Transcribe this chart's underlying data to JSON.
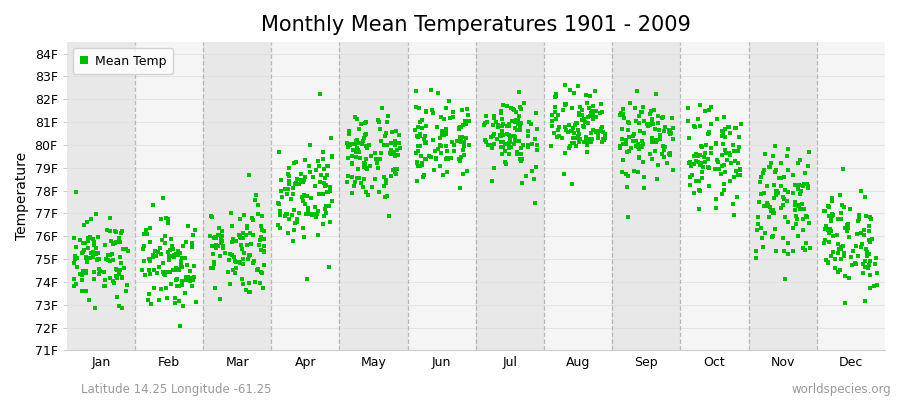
{
  "title": "Monthly Mean Temperatures 1901 - 2009",
  "ylabel": "Temperature",
  "ylim": [
    71,
    84.5
  ],
  "yticks": [
    71,
    72,
    73,
    74,
    75,
    76,
    77,
    78,
    79,
    80,
    81,
    82,
    83,
    84
  ],
  "ytick_labels": [
    "71F",
    "72F",
    "73F",
    "74F",
    "75F",
    "76F",
    "77F",
    "78F",
    "79F",
    "80F",
    "81F",
    "82F",
    "83F",
    "84F"
  ],
  "months": [
    "Jan",
    "Feb",
    "Mar",
    "Apr",
    "May",
    "Jun",
    "Jul",
    "Aug",
    "Sep",
    "Oct",
    "Nov",
    "Dec"
  ],
  "month_means": [
    75.0,
    74.8,
    75.5,
    78.0,
    79.5,
    80.2,
    80.5,
    80.8,
    80.2,
    79.5,
    77.5,
    75.8
  ],
  "month_stds": [
    0.9,
    1.0,
    1.0,
    1.1,
    1.0,
    0.9,
    0.9,
    0.8,
    0.9,
    1.0,
    1.1,
    1.1
  ],
  "n_years": 109,
  "dot_color": "#00bb00",
  "dot_size": 5,
  "bg_color": "#ffffff",
  "plot_bg_color": "#ffffff",
  "band_color_odd": "#e8e8e8",
  "band_color_even": "#f5f5f5",
  "dashed_line_color": "#aaaaaa",
  "legend_label": "Mean Temp",
  "footnote_left": "Latitude 14.25 Longitude -61.25",
  "footnote_right": "worldspecies.org",
  "footnote_color": "#999999",
  "title_fontsize": 15,
  "axis_fontsize": 10,
  "tick_fontsize": 9,
  "footnote_fontsize": 8.5
}
